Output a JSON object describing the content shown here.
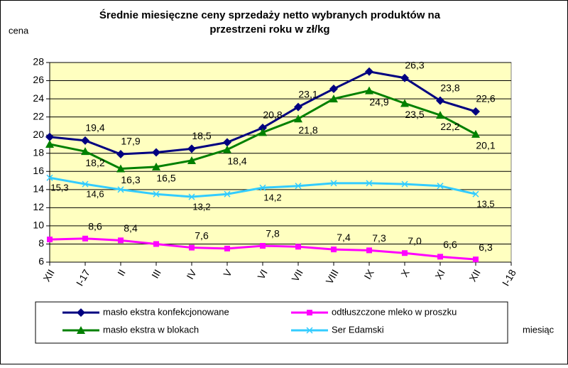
{
  "chart_data": {
    "type": "line",
    "title": [
      "Średnie miesięczne ceny sprzedaży netto  wybranych produktów na",
      "przestrzeni roku w zł/kg"
    ],
    "y_label": "cena",
    "x_label": "miesiąc",
    "categories": [
      "XII",
      "I-17",
      "II",
      "III",
      "IV",
      "V",
      "VI",
      "VII",
      "VIII",
      "IX",
      "X",
      "XI",
      "XII",
      "I-18"
    ],
    "ylim": [
      6,
      28
    ],
    "yticks": [
      6,
      8,
      10,
      12,
      14,
      16,
      18,
      20,
      22,
      24,
      26,
      28
    ],
    "grid": true,
    "series": [
      {
        "name": "masło ekstra konfekcjonowane",
        "color": "#000080",
        "marker": "diamond",
        "values": [
          19.8,
          19.4,
          17.9,
          18.1,
          18.5,
          19.2,
          20.8,
          23.1,
          25.1,
          27.0,
          26.3,
          23.8,
          22.6,
          null
        ],
        "value_labels": [
          null,
          "19,4",
          "17,9",
          null,
          "18,5",
          null,
          "20,8",
          "23,1",
          null,
          null,
          "26,3",
          "23,8",
          "22,6",
          null
        ]
      },
      {
        "name": "odtłuszczone mleko w proszku",
        "color": "#ff00ff",
        "marker": "square",
        "values": [
          8.5,
          8.6,
          8.4,
          8.0,
          7.6,
          7.5,
          7.8,
          7.7,
          7.4,
          7.3,
          7.0,
          6.6,
          6.3,
          null
        ],
        "value_labels": [
          null,
          "8,6",
          "8,4",
          null,
          "7,6",
          null,
          "7,8",
          null,
          "7,4",
          "7,3",
          "7,0",
          "6,6",
          "6,3",
          null
        ]
      },
      {
        "name": "masło ekstra w blokach",
        "color": "#008000",
        "marker": "triangle",
        "values": [
          19.0,
          18.2,
          16.3,
          16.5,
          17.2,
          18.4,
          20.3,
          21.8,
          24.0,
          24.9,
          23.5,
          22.2,
          20.1,
          null
        ],
        "value_labels": [
          null,
          "18,2",
          "16,3",
          "16,5",
          null,
          "18,4",
          null,
          "21,8",
          null,
          "24,9",
          "23,5",
          "22,2",
          "20,1",
          null
        ]
      },
      {
        "name": "Ser Edamski",
        "color": "#33ccff",
        "marker": "x",
        "values": [
          15.3,
          14.6,
          14.0,
          13.5,
          13.2,
          13.5,
          14.2,
          14.4,
          14.7,
          14.7,
          14.6,
          14.4,
          13.5,
          null
        ],
        "value_labels": [
          "15,3",
          "14,6",
          null,
          null,
          "13,2",
          null,
          "14,2",
          null,
          null,
          null,
          null,
          null,
          "13,5",
          null
        ]
      }
    ]
  }
}
